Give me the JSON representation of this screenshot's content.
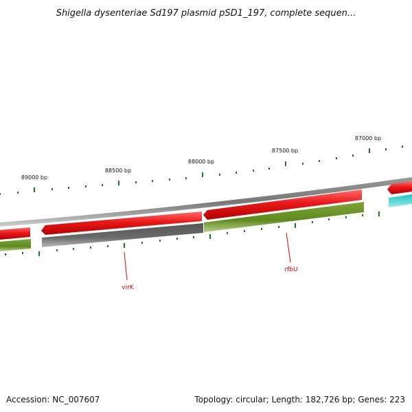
{
  "title": "Shigella dysenteriae Sd197 plasmid pSD1_197, complete sequen...",
  "ticks": [
    {
      "label": "89000 bp"
    },
    {
      "label": "88500 bp"
    },
    {
      "label": "88000 bp"
    },
    {
      "label": "87500 bp"
    },
    {
      "label": "87000 bp"
    }
  ],
  "genes": [
    {
      "label": "virK",
      "color": "#e00000"
    },
    {
      "label": "rfbU",
      "color": "#e00000"
    }
  ],
  "colors": {
    "forward_cds": "#e8191a",
    "reverse_cds_olive": "#6b8e23",
    "reverse_cds_gray": "#666666",
    "cyan_feature": "#33cccc",
    "backbone": "#888888",
    "tick": "#1a7a1a"
  },
  "footer": {
    "accession": "Accession: NC_007607",
    "summary": "Topology: circular; Length: 182,726 bp; Genes: 223"
  }
}
